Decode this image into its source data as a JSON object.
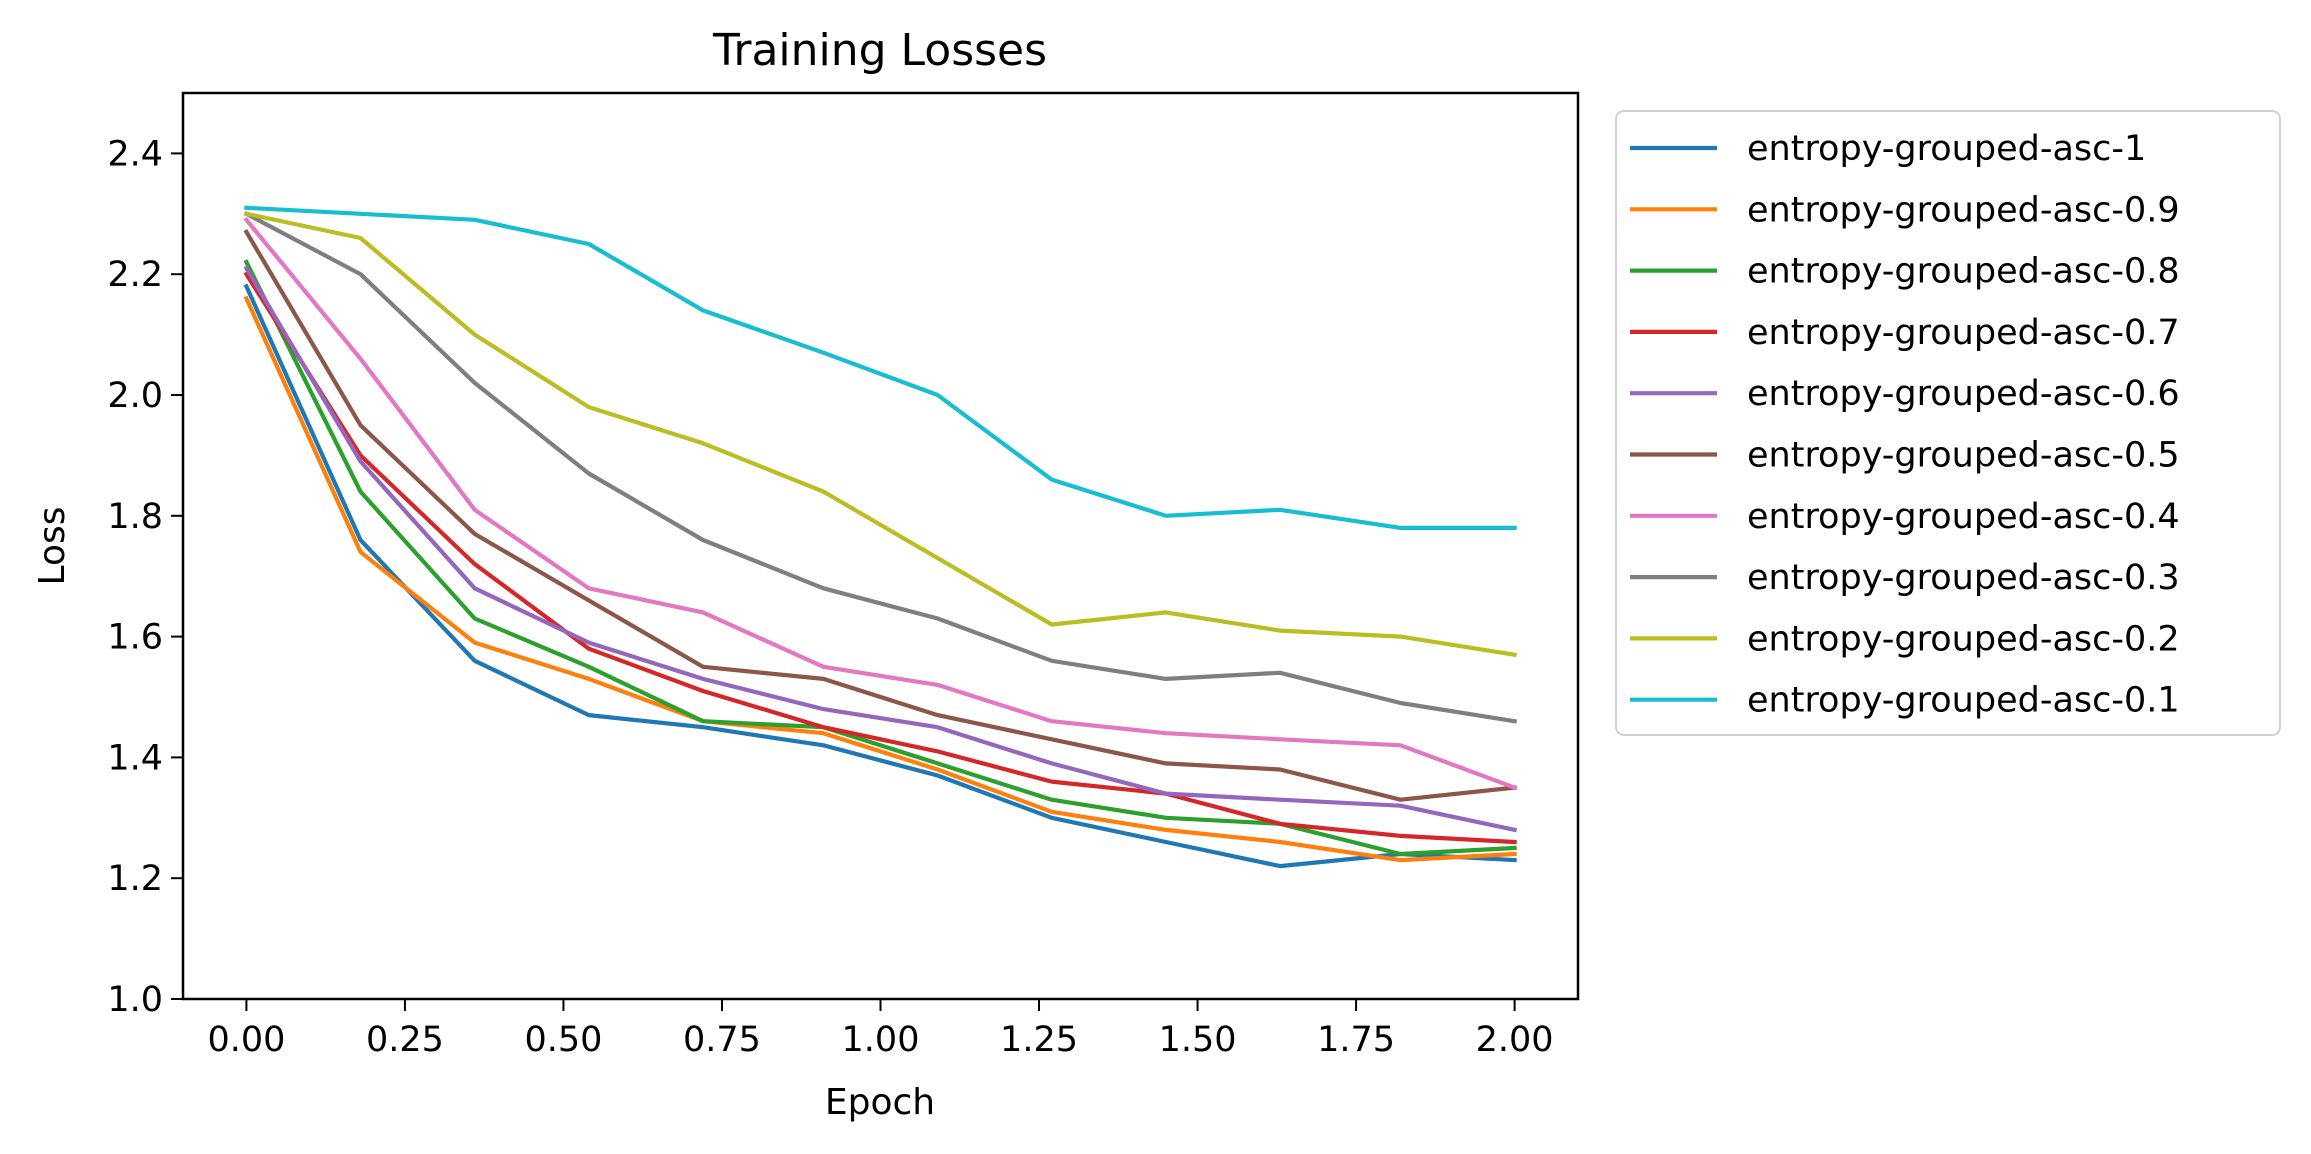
{
  "chart_data": {
    "type": "line",
    "title": "Training Losses",
    "xlabel": "Epoch",
    "ylabel": "Loss",
    "xlim": [
      -0.1,
      2.1
    ],
    "ylim": [
      1.0,
      2.5
    ],
    "xticks": [
      "0.00",
      "0.25",
      "0.50",
      "0.75",
      "1.00",
      "1.25",
      "1.50",
      "1.75",
      "2.00"
    ],
    "yticks": [
      "1.0",
      "1.2",
      "1.4",
      "1.6",
      "1.8",
      "2.0",
      "2.2",
      "2.4"
    ],
    "grid": false,
    "legend_position": "outside-right",
    "x": [
      0.0,
      0.18,
      0.36,
      0.54,
      0.72,
      0.91,
      1.09,
      1.27,
      1.45,
      1.63,
      1.82,
      2.0
    ],
    "series": [
      {
        "name": "entropy-grouped-asc-1",
        "color": "#1f77b4",
        "values": [
          2.18,
          1.76,
          1.56,
          1.47,
          1.45,
          1.42,
          1.37,
          1.3,
          1.26,
          1.22,
          1.24,
          1.23
        ]
      },
      {
        "name": "entropy-grouped-asc-0.9",
        "color": "#ff7f0e",
        "values": [
          2.16,
          1.74,
          1.59,
          1.53,
          1.46,
          1.44,
          1.38,
          1.31,
          1.28,
          1.26,
          1.23,
          1.24
        ]
      },
      {
        "name": "entropy-grouped-asc-0.8",
        "color": "#2ca02c",
        "values": [
          2.22,
          1.84,
          1.63,
          1.55,
          1.46,
          1.45,
          1.39,
          1.33,
          1.3,
          1.29,
          1.24,
          1.25
        ]
      },
      {
        "name": "entropy-grouped-asc-0.7",
        "color": "#d62728",
        "values": [
          2.2,
          1.9,
          1.72,
          1.58,
          1.51,
          1.45,
          1.41,
          1.36,
          1.34,
          1.29,
          1.27,
          1.26
        ]
      },
      {
        "name": "entropy-grouped-asc-0.6",
        "color": "#9467bd",
        "values": [
          2.21,
          1.89,
          1.68,
          1.59,
          1.53,
          1.48,
          1.45,
          1.39,
          1.34,
          1.33,
          1.32,
          1.28
        ]
      },
      {
        "name": "entropy-grouped-asc-0.5",
        "color": "#8c564b",
        "values": [
          2.27,
          1.95,
          1.77,
          1.66,
          1.55,
          1.53,
          1.47,
          1.43,
          1.39,
          1.38,
          1.33,
          1.35
        ]
      },
      {
        "name": "entropy-grouped-asc-0.4",
        "color": "#e377c2",
        "values": [
          2.29,
          2.06,
          1.81,
          1.68,
          1.64,
          1.55,
          1.52,
          1.46,
          1.44,
          1.43,
          1.42,
          1.35
        ]
      },
      {
        "name": "entropy-grouped-asc-0.3",
        "color": "#7f7f7f",
        "values": [
          2.3,
          2.2,
          2.02,
          1.87,
          1.76,
          1.68,
          1.63,
          1.56,
          1.53,
          1.54,
          1.49,
          1.46
        ]
      },
      {
        "name": "entropy-grouped-asc-0.2",
        "color": "#bcbd22",
        "values": [
          2.3,
          2.26,
          2.1,
          1.98,
          1.92,
          1.84,
          1.73,
          1.62,
          1.64,
          1.61,
          1.6,
          1.57
        ]
      },
      {
        "name": "entropy-grouped-asc-0.1",
        "color": "#17becf",
        "values": [
          2.31,
          2.3,
          2.29,
          2.25,
          2.14,
          2.07,
          2.0,
          1.86,
          1.8,
          1.81,
          1.78,
          1.78
        ]
      }
    ]
  }
}
